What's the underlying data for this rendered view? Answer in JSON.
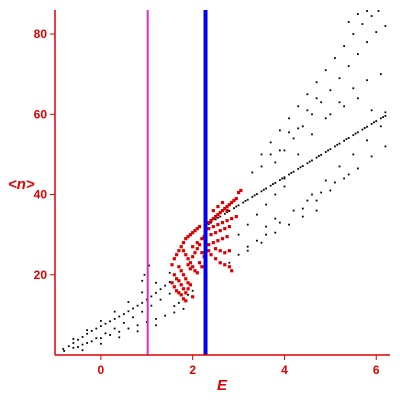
{
  "chart_data": {
    "type": "scatter",
    "title": "",
    "xlabel": "E",
    "ylabel": "<n>",
    "xlim": [
      -1.0,
      6.3
    ],
    "ylim": [
      0,
      86
    ],
    "x_ticks": [
      0,
      2,
      4,
      6
    ],
    "y_ticks": [
      20,
      40,
      60,
      80
    ],
    "x_tick_labels": [
      "0",
      "2",
      "4",
      "6"
    ],
    "y_tick_labels": [
      "20",
      "40",
      "60",
      "80"
    ],
    "grid": false,
    "legend": "none",
    "colors": {
      "axis": "#e00000",
      "black_points": "#000000",
      "red_points": "#e00000",
      "vline_magenta": "#cc33cc",
      "vline_blue": "#0000ee"
    },
    "vertical_lines": [
      {
        "x": 1.02,
        "color": "#cc33cc"
      },
      {
        "x": 2.28,
        "color": "#0000ee"
      }
    ],
    "series": [
      {
        "values": [
          [
            -0.82,
            1.5
          ],
          [
            -0.7,
            2.2
          ],
          [
            -0.6,
            3.0
          ],
          [
            -0.5,
            3.8
          ],
          [
            -0.4,
            4.5
          ],
          [
            -0.3,
            5.3
          ],
          [
            -0.2,
            6.0
          ],
          [
            -0.1,
            6.6
          ],
          [
            0.0,
            7.2
          ],
          [
            0.1,
            7.8
          ],
          [
            0.2,
            8.4
          ],
          [
            0.3,
            9.0
          ],
          [
            0.4,
            9.6
          ],
          [
            0.5,
            10.2
          ],
          [
            0.6,
            10.9
          ],
          [
            0.7,
            11.6
          ],
          [
            0.8,
            12.3
          ],
          [
            0.9,
            13.0
          ],
          [
            1.0,
            13.8
          ],
          [
            1.1,
            14.6
          ],
          [
            1.2,
            15.5
          ],
          [
            1.3,
            16.4
          ],
          [
            1.4,
            17.3
          ],
          [
            1.5,
            18.2
          ],
          [
            -0.8,
            1.0
          ],
          [
            -0.6,
            1.8
          ],
          [
            -0.4,
            2.6
          ],
          [
            -0.2,
            3.4
          ],
          [
            0.0,
            4.2
          ],
          [
            0.2,
            5.0
          ],
          [
            0.4,
            5.8
          ],
          [
            0.6,
            6.6
          ],
          [
            0.8,
            7.4
          ],
          [
            1.0,
            8.2
          ],
          [
            1.2,
            9.0
          ],
          [
            1.4,
            9.8
          ],
          [
            1.6,
            10.6
          ],
          [
            1.8,
            11.5
          ],
          [
            -0.5,
            2.0
          ],
          [
            -0.3,
            3.0
          ],
          [
            -0.1,
            4.2
          ],
          [
            0.1,
            5.4
          ],
          [
            0.3,
            6.6
          ],
          [
            0.5,
            8.0
          ],
          [
            0.7,
            9.4
          ],
          [
            0.9,
            10.8
          ],
          [
            1.1,
            12.3
          ],
          [
            1.3,
            13.8
          ],
          [
            1.5,
            15.3
          ],
          [
            -0.6,
            4.0
          ],
          [
            -0.3,
            6.2
          ],
          [
            0.0,
            8.5
          ],
          [
            0.3,
            10.8
          ],
          [
            0.6,
            13.2
          ],
          [
            0.9,
            15.6
          ],
          [
            1.2,
            18.0
          ],
          [
            1.5,
            20.5
          ],
          [
            -0.4,
            1.2
          ],
          [
            0.0,
            2.8
          ],
          [
            0.4,
            4.4
          ],
          [
            0.8,
            5.9
          ],
          [
            1.2,
            7.4
          ],
          [
            0.95,
            20.0
          ],
          [
            1.05,
            22.3
          ],
          [
            0.9,
            18.5
          ],
          [
            1.6,
            12.2
          ],
          [
            1.7,
            13.0
          ],
          [
            1.9,
            15.0
          ],
          [
            2.0,
            16.0
          ],
          [
            2.3,
            32.0
          ],
          [
            2.4,
            33.0
          ],
          [
            2.5,
            33.8
          ],
          [
            2.6,
            34.5
          ],
          [
            2.7,
            35.2
          ],
          [
            2.8,
            35.9
          ],
          [
            2.9,
            36.6
          ],
          [
            3.0,
            37.3
          ],
          [
            3.1,
            38.0
          ],
          [
            3.2,
            38.7
          ],
          [
            3.3,
            39.4
          ],
          [
            3.4,
            40.1
          ],
          [
            3.5,
            40.8
          ],
          [
            3.6,
            41.5
          ],
          [
            3.7,
            42.2
          ],
          [
            3.8,
            42.9
          ],
          [
            3.9,
            43.6
          ],
          [
            4.0,
            44.3
          ],
          [
            4.1,
            45.0
          ],
          [
            4.2,
            45.7
          ],
          [
            4.3,
            46.4
          ],
          [
            4.4,
            47.1
          ],
          [
            4.5,
            47.8
          ],
          [
            4.6,
            48.5
          ],
          [
            4.7,
            49.2
          ],
          [
            4.8,
            49.9
          ],
          [
            4.9,
            50.6
          ],
          [
            5.0,
            51.3
          ],
          [
            5.1,
            52.0
          ],
          [
            5.2,
            52.7
          ],
          [
            5.3,
            53.4
          ],
          [
            5.4,
            54.1
          ],
          [
            5.5,
            54.8
          ],
          [
            5.6,
            55.5
          ],
          [
            5.7,
            56.2
          ],
          [
            5.8,
            56.9
          ],
          [
            5.9,
            57.6
          ],
          [
            6.0,
            58.3
          ],
          [
            6.1,
            59.0
          ],
          [
            6.2,
            59.6
          ],
          [
            2.35,
            32.6
          ],
          [
            2.55,
            34.2
          ],
          [
            2.75,
            35.6
          ],
          [
            2.95,
            37.0
          ],
          [
            3.15,
            38.4
          ],
          [
            3.35,
            39.8
          ],
          [
            3.55,
            41.2
          ],
          [
            3.75,
            42.6
          ],
          [
            3.95,
            44.0
          ],
          [
            4.15,
            45.4
          ],
          [
            4.35,
            46.8
          ],
          [
            4.55,
            48.2
          ],
          [
            4.75,
            49.6
          ],
          [
            4.95,
            51.0
          ],
          [
            5.15,
            52.4
          ],
          [
            5.35,
            53.8
          ],
          [
            5.55,
            55.2
          ],
          [
            5.75,
            56.6
          ],
          [
            5.95,
            58.0
          ],
          [
            6.15,
            59.3
          ],
          [
            3.5,
            50.0
          ],
          [
            3.7,
            53.0
          ],
          [
            3.9,
            56.0
          ],
          [
            4.1,
            59.0
          ],
          [
            4.3,
            62.0
          ],
          [
            4.5,
            65.0
          ],
          [
            4.7,
            68.0
          ],
          [
            4.9,
            71.0
          ],
          [
            5.1,
            74.0
          ],
          [
            5.3,
            77.0
          ],
          [
            5.5,
            80.0
          ],
          [
            5.7,
            82.5
          ],
          [
            5.9,
            84.5
          ],
          [
            6.05,
            86.0
          ],
          [
            3.8,
            48.0
          ],
          [
            4.0,
            51.0
          ],
          [
            4.2,
            54.0
          ],
          [
            4.4,
            57.0
          ],
          [
            4.6,
            60.0
          ],
          [
            4.8,
            63.0
          ],
          [
            5.0,
            66.0
          ],
          [
            5.2,
            69.0
          ],
          [
            5.4,
            72.0
          ],
          [
            5.6,
            75.0
          ],
          [
            5.8,
            78.0
          ],
          [
            6.0,
            80.5
          ],
          [
            6.2,
            82.0
          ],
          [
            4.0,
            44.0
          ],
          [
            4.3,
            50.0
          ],
          [
            4.6,
            55.0
          ],
          [
            4.9,
            59.0
          ],
          [
            5.2,
            63.0
          ],
          [
            5.5,
            66.5
          ],
          [
            5.8,
            68.5
          ],
          [
            6.1,
            70.0
          ],
          [
            4.6,
            40.0
          ],
          [
            4.9,
            43.5
          ],
          [
            5.2,
            47.0
          ],
          [
            5.5,
            50.0
          ],
          [
            5.8,
            53.5
          ],
          [
            6.1,
            57.0
          ],
          [
            4.4,
            36.5
          ],
          [
            4.7,
            38.5
          ],
          [
            5.0,
            41.0
          ],
          [
            5.3,
            44.0
          ],
          [
            5.6,
            46.5
          ],
          [
            5.9,
            49.5
          ],
          [
            6.2,
            52.0
          ],
          [
            3.6,
            30.0
          ],
          [
            3.9,
            33.0
          ],
          [
            4.2,
            36.0
          ],
          [
            4.5,
            38.5
          ],
          [
            4.8,
            40.5
          ],
          [
            5.1,
            43.0
          ],
          [
            5.4,
            45.0
          ],
          [
            3.2,
            26.0
          ],
          [
            3.5,
            28.0
          ],
          [
            3.8,
            30.5
          ],
          [
            4.1,
            32.5
          ],
          [
            4.4,
            34.5
          ],
          [
            4.7,
            36.0
          ],
          [
            3.0,
            30.0
          ],
          [
            3.2,
            32.5
          ],
          [
            3.4,
            35.0
          ],
          [
            3.6,
            37.5
          ],
          [
            3.8,
            40.0
          ],
          [
            4.0,
            42.0
          ],
          [
            2.8,
            23.0
          ],
          [
            3.0,
            25.0
          ],
          [
            3.2,
            27.0
          ],
          [
            3.4,
            28.5
          ],
          [
            3.6,
            32.0
          ],
          [
            3.8,
            34.0
          ],
          [
            3.3,
            45.5
          ],
          [
            3.5,
            47.0
          ],
          [
            3.7,
            50.0
          ],
          [
            3.9,
            51.0
          ],
          [
            4.1,
            55.5
          ],
          [
            4.3,
            56.5
          ],
          [
            4.5,
            61.0
          ],
          [
            4.7,
            64.0
          ],
          [
            5.0,
            60.0
          ],
          [
            5.3,
            62.0
          ],
          [
            5.6,
            64.0
          ],
          [
            5.9,
            61.0
          ],
          [
            6.2,
            60.5
          ],
          [
            5.4,
            83.0
          ],
          [
            5.6,
            85.0
          ],
          [
            5.8,
            86.5
          ]
        ]
      },
      {
        "values": [
          [
            1.8,
            28.0
          ],
          [
            1.85,
            29.0
          ],
          [
            1.9,
            29.5
          ],
          [
            1.95,
            30.0
          ],
          [
            2.0,
            30.5
          ],
          [
            2.05,
            31.0
          ],
          [
            2.1,
            31.5
          ],
          [
            2.15,
            32.0
          ],
          [
            1.75,
            27.0
          ],
          [
            1.7,
            26.0
          ],
          [
            1.65,
            25.0
          ],
          [
            1.6,
            24.0
          ],
          [
            1.55,
            22.5
          ],
          [
            1.8,
            26.0
          ],
          [
            1.85,
            25.0
          ],
          [
            1.9,
            24.0
          ],
          [
            1.95,
            23.0
          ],
          [
            2.0,
            22.0
          ],
          [
            2.05,
            21.0
          ],
          [
            2.1,
            20.5
          ],
          [
            1.7,
            22.0
          ],
          [
            1.75,
            21.0
          ],
          [
            1.8,
            20.0
          ],
          [
            1.85,
            19.0
          ],
          [
            1.9,
            18.0
          ],
          [
            1.95,
            17.5
          ],
          [
            1.6,
            20.0
          ],
          [
            1.65,
            19.0
          ],
          [
            1.7,
            18.5
          ],
          [
            1.75,
            17.5
          ],
          [
            1.8,
            16.5
          ],
          [
            1.85,
            15.5
          ],
          [
            1.55,
            18.0
          ],
          [
            1.6,
            17.0
          ],
          [
            1.65,
            16.0
          ],
          [
            1.7,
            15.5
          ],
          [
            1.75,
            15.0
          ],
          [
            1.9,
            22.5
          ],
          [
            1.95,
            21.5
          ],
          [
            2.0,
            24.5
          ],
          [
            2.05,
            25.5
          ],
          [
            2.1,
            26.5
          ],
          [
            2.15,
            27.5
          ],
          [
            2.0,
            27.0
          ],
          [
            2.1,
            28.0
          ],
          [
            2.2,
            29.0
          ],
          [
            2.25,
            29.5
          ],
          [
            2.2,
            25.5
          ],
          [
            2.25,
            24.5
          ],
          [
            2.15,
            23.0
          ],
          [
            2.2,
            22.0
          ],
          [
            2.35,
            33.0
          ],
          [
            2.4,
            33.5
          ],
          [
            2.45,
            34.0
          ],
          [
            2.5,
            34.5
          ],
          [
            2.55,
            35.0
          ],
          [
            2.6,
            35.5
          ],
          [
            2.65,
            36.0
          ],
          [
            2.7,
            36.5
          ],
          [
            2.75,
            37.0
          ],
          [
            2.8,
            37.5
          ],
          [
            2.85,
            38.0
          ],
          [
            2.9,
            38.5
          ],
          [
            2.95,
            39.0
          ],
          [
            2.35,
            31.5
          ],
          [
            2.45,
            32.0
          ],
          [
            2.55,
            32.5
          ],
          [
            2.65,
            33.0
          ],
          [
            2.75,
            33.5
          ],
          [
            2.85,
            34.0
          ],
          [
            2.95,
            34.5
          ],
          [
            2.4,
            30.0
          ],
          [
            2.5,
            30.5
          ],
          [
            2.6,
            31.0
          ],
          [
            2.7,
            31.5
          ],
          [
            2.8,
            32.0
          ],
          [
            2.35,
            27.5
          ],
          [
            2.45,
            28.0
          ],
          [
            2.55,
            28.5
          ],
          [
            2.65,
            29.0
          ],
          [
            2.75,
            29.5
          ],
          [
            2.4,
            25.0
          ],
          [
            2.5,
            24.0
          ],
          [
            2.6,
            23.0
          ],
          [
            2.7,
            22.5
          ],
          [
            2.8,
            22.0
          ],
          [
            2.85,
            21.0
          ],
          [
            2.35,
            26.0
          ],
          [
            2.5,
            26.5
          ],
          [
            2.6,
            26.0
          ],
          [
            2.7,
            25.5
          ],
          [
            2.8,
            26.0
          ],
          [
            2.45,
            36.0
          ],
          [
            2.55,
            37.0
          ],
          [
            2.65,
            38.0
          ],
          [
            2.75,
            36.0
          ],
          [
            3.0,
            40.5
          ],
          [
            3.05,
            41.0
          ],
          [
            1.85,
            13.5
          ],
          [
            1.8,
            14.0
          ],
          [
            2.0,
            14.5
          ],
          [
            1.9,
            16.5
          ]
        ]
      }
    ]
  }
}
